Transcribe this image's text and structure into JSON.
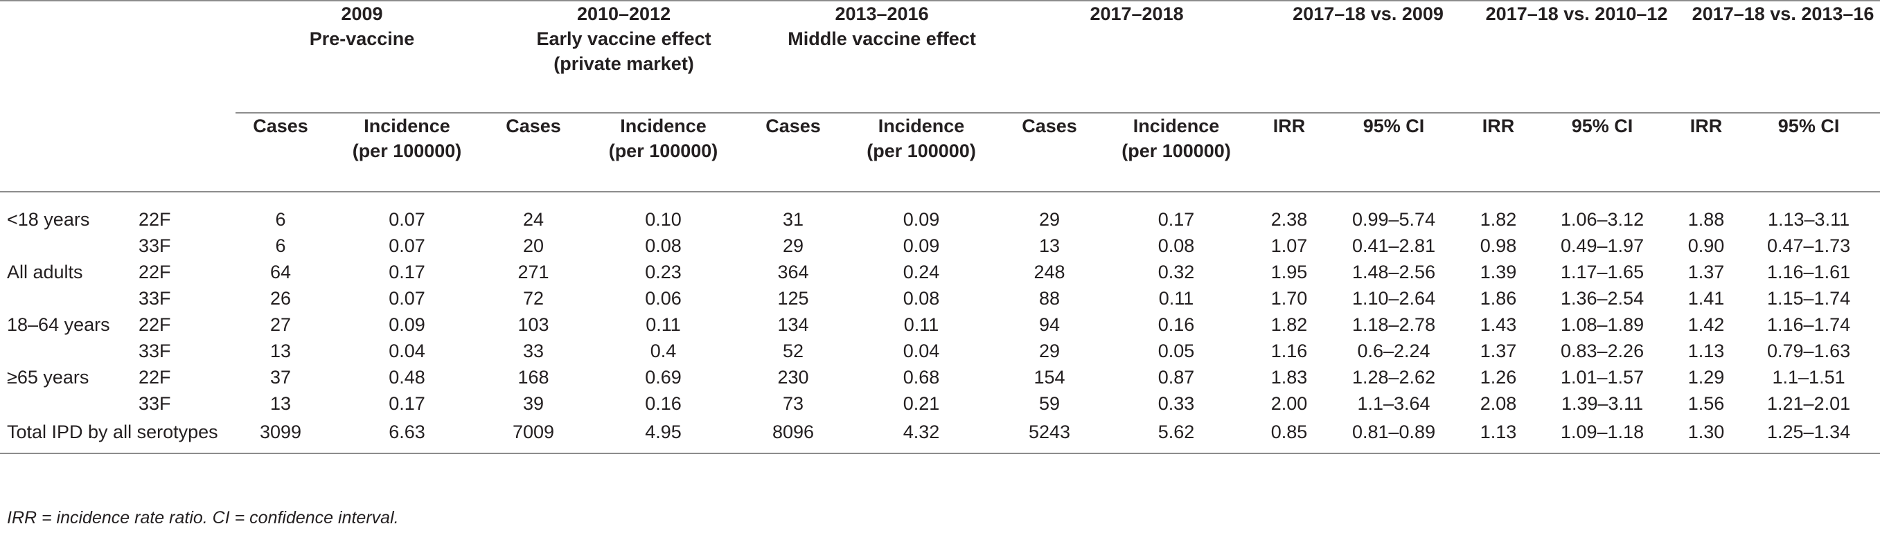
{
  "periods": [
    {
      "title": "2009",
      "subtitle_lines": [
        "Pre-vaccine"
      ]
    },
    {
      "title": "2010–2012",
      "subtitle_lines": [
        "Early vaccine effect",
        "(private market)"
      ]
    },
    {
      "title": "2013–2016",
      "subtitle_lines": [
        "Middle vaccine effect"
      ]
    },
    {
      "title": "2017–2018",
      "subtitle_lines": []
    }
  ],
  "comparisons": [
    {
      "title": "2017–18 vs. 2009"
    },
    {
      "title": "2017–18 vs. 2010–12"
    },
    {
      "title": "2017–18 vs. 2013–16"
    }
  ],
  "subheaders": {
    "cases": "Cases",
    "incidence_line1": "Incidence",
    "incidence_line2": "(per 100000)",
    "irr": "IRR",
    "ci": "95% CI"
  },
  "rows": [
    {
      "group": "<18 years",
      "serotype": "22F",
      "values": [
        "6",
        "0.07",
        "24",
        "0.10",
        "31",
        "0.09",
        "29",
        "0.17",
        "2.38",
        "0.99–5.74",
        "1.82",
        "1.06–3.12",
        "1.88",
        "1.13–3.11"
      ]
    },
    {
      "group": "",
      "serotype": "33F",
      "values": [
        "6",
        "0.07",
        "20",
        "0.08",
        "29",
        "0.09",
        "13",
        "0.08",
        "1.07",
        "0.41–2.81",
        "0.98",
        "0.49–1.97",
        "0.90",
        "0.47–1.73"
      ]
    },
    {
      "group": "All adults",
      "serotype": "22F",
      "values": [
        "64",
        "0.17",
        "271",
        "0.23",
        "364",
        "0.24",
        "248",
        "0.32",
        "1.95",
        "1.48–2.56",
        "1.39",
        "1.17–1.65",
        "1.37",
        "1.16–1.61"
      ]
    },
    {
      "group": "",
      "serotype": "33F",
      "values": [
        "26",
        "0.07",
        "72",
        "0.06",
        "125",
        "0.08",
        "88",
        "0.11",
        "1.70",
        "1.10–2.64",
        "1.86",
        "1.36–2.54",
        "1.41",
        "1.15–1.74"
      ]
    },
    {
      "group": "18–64 years",
      "serotype": "22F",
      "values": [
        "27",
        "0.09",
        "103",
        "0.11",
        "134",
        "0.11",
        "94",
        "0.16",
        "1.82",
        "1.18–2.78",
        "1.43",
        "1.08–1.89",
        "1.42",
        "1.16–1.74"
      ]
    },
    {
      "group": "",
      "serotype": "33F",
      "values": [
        "13",
        "0.04",
        "33",
        "0.4",
        "52",
        "0.04",
        "29",
        "0.05",
        "1.16",
        "0.6–2.24",
        "1.37",
        "0.83–2.26",
        "1.13",
        "0.79–1.63"
      ]
    },
    {
      "group": "≥65 years",
      "serotype": "22F",
      "values": [
        "37",
        "0.48",
        "168",
        "0.69",
        "230",
        "0.68",
        "154",
        "0.87",
        "1.83",
        "1.28–2.62",
        "1.26",
        "1.01–1.57",
        "1.29",
        "1.1–1.51"
      ]
    },
    {
      "group": "",
      "serotype": "33F",
      "values": [
        "13",
        "0.17",
        "39",
        "0.16",
        "73",
        "0.21",
        "59",
        "0.33",
        "2.00",
        "1.1–3.64",
        "2.08",
        "1.39–3.11",
        "1.56",
        "1.21–2.01"
      ]
    },
    {
      "group": "Total IPD by all serotypes",
      "serotype": "",
      "values": [
        "3099",
        "6.63",
        "7009",
        "4.95",
        "8096",
        "4.32",
        "5243",
        "5.62",
        "0.85",
        "0.81–0.89",
        "1.13",
        "1.09–1.18",
        "1.30",
        "1.25–1.34"
      ]
    }
  ],
  "footnote": "IRR = incidence rate ratio. CI = confidence interval."
}
